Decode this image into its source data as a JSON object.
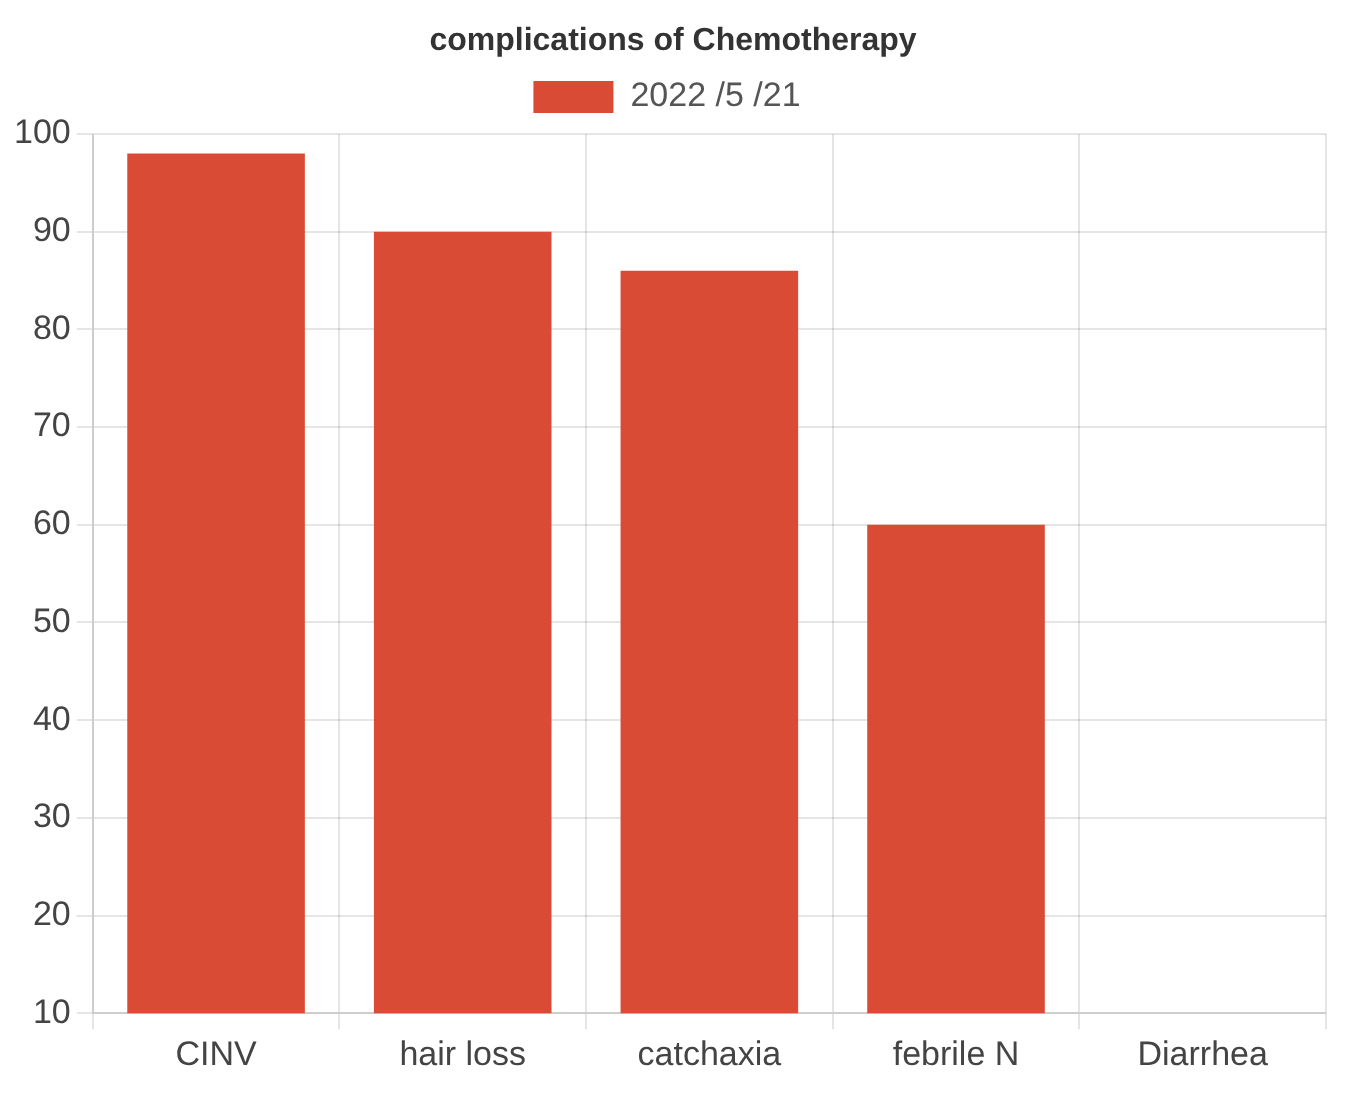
{
  "chart_data": {
    "type": "bar",
    "title": "complications of Chemotherapy",
    "categories": [
      "CINV",
      "hair loss",
      "catchaxia",
      "febrile N",
      "Diarrhea"
    ],
    "series": [
      {
        "name": "2022 /5 /21",
        "color": "#d94b35",
        "values": [
          98,
          90,
          86,
          60,
          null
        ]
      }
    ],
    "ylim": [
      10,
      100
    ],
    "yticks": [
      10,
      20,
      30,
      40,
      50,
      60,
      70,
      80,
      90,
      100
    ],
    "grid": true,
    "legend": "top"
  }
}
